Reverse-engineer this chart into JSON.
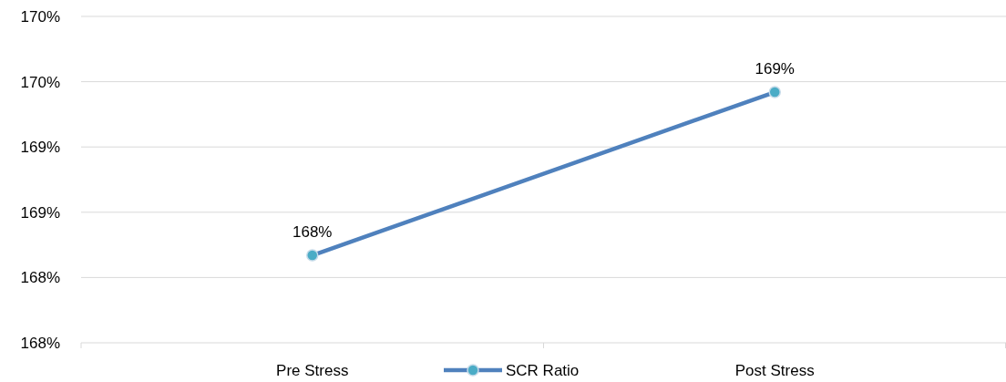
{
  "chart_data": {
    "type": "line",
    "categories": [
      "Pre Stress",
      "Post Stress"
    ],
    "series": [
      {
        "name": "SCR Ratio",
        "color": "#4f81bd",
        "values": [
          168.17,
          169.42
        ],
        "value_labels": [
          "168%",
          "169%"
        ]
      }
    ],
    "ylim": [
      167.5,
      170
    ],
    "yticks": [
      {
        "value": 167.5,
        "label": "168%"
      },
      {
        "value": 168,
        "label": "168%"
      },
      {
        "value": 168.5,
        "label": "169%"
      },
      {
        "value": 169,
        "label": "169%"
      },
      {
        "value": 169.5,
        "label": "170%"
      },
      {
        "value": 170,
        "label": "170%"
      }
    ],
    "grid": "y",
    "legend": "bottom",
    "marker": "circle",
    "line_style": "solid"
  }
}
